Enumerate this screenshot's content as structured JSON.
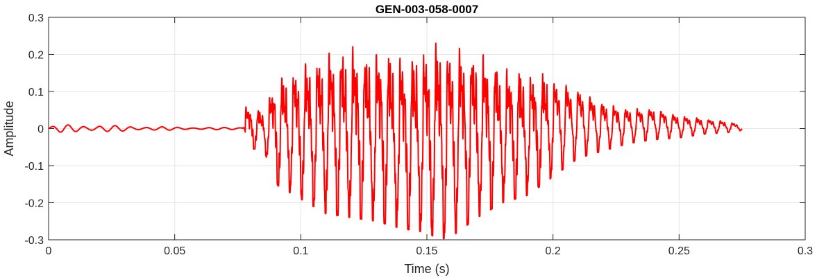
{
  "chart_data": {
    "type": "line",
    "title": "GEN-003-058-0007",
    "xlabel": "Time (s)",
    "ylabel": "Amplitude",
    "xlim": [
      0,
      0.3
    ],
    "ylim": [
      -0.3,
      0.3
    ],
    "grid": true,
    "legend": "none",
    "x_ticks": [
      "0",
      "0.05",
      "0.1",
      "0.15",
      "0.2",
      "0.25",
      "0.3"
    ],
    "y_ticks": [
      "0.3",
      "0.2",
      "0.1",
      "0",
      "-0.1",
      "-0.2",
      "-0.3"
    ],
    "series": [
      {
        "color": "#ff0000",
        "x_start": 0,
        "x_end": 0.275,
        "envelope": {
          "x": [
            0,
            0.005,
            0.012,
            0.025,
            0.035,
            0.05,
            0.07,
            0.077,
            0.078,
            0.085,
            0.09,
            0.1,
            0.11,
            0.12,
            0.13,
            0.14,
            0.15,
            0.155,
            0.16,
            0.17,
            0.18,
            0.19,
            0.2,
            0.21,
            0.22,
            0.23,
            0.24,
            0.25,
            0.26,
            0.27,
            0.275
          ],
          "upper": [
            0.005,
            0.01,
            0.012,
            0.008,
            0.007,
            0.004,
            0.003,
            0.004,
            0.065,
            0.05,
            0.14,
            0.18,
            0.22,
            0.225,
            0.215,
            0.21,
            0.225,
            0.245,
            0.235,
            0.22,
            0.17,
            0.16,
            0.15,
            0.12,
            0.08,
            0.06,
            0.06,
            0.04,
            0.03,
            0.02,
            0.01
          ],
          "lower": [
            -0.005,
            -0.01,
            -0.012,
            -0.008,
            -0.007,
            -0.004,
            -0.003,
            -0.004,
            -0.06,
            -0.05,
            -0.15,
            -0.19,
            -0.23,
            -0.24,
            -0.25,
            -0.27,
            -0.28,
            -0.3,
            -0.29,
            -0.24,
            -0.2,
            -0.18,
            -0.13,
            -0.08,
            -0.06,
            -0.04,
            -0.03,
            -0.025,
            -0.015,
            -0.01,
            -0.005
          ]
        },
        "pitch_period_s": 0.0047
      }
    ]
  }
}
